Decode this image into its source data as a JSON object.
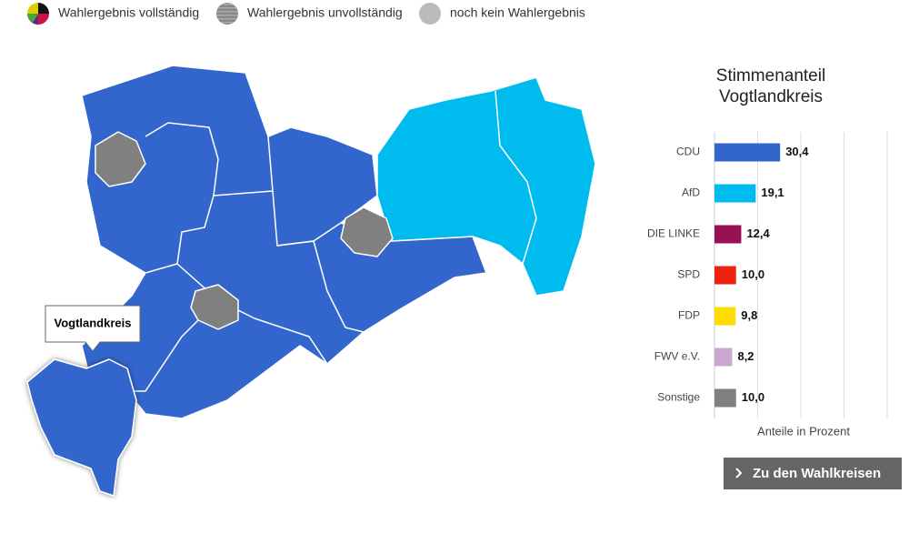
{
  "legend": {
    "items": [
      "Wahlergebnis vollständig",
      "Wahlergebnis unvollständig",
      "noch kein Wahlergebnis"
    ]
  },
  "map": {
    "tooltip": "Vogtlandkreis"
  },
  "chart_data": {
    "type": "bar",
    "orientation": "horizontal",
    "title": [
      "Stimmenanteil",
      "Vogtlandkreis"
    ],
    "x_label": "Anteile in Prozent",
    "categories": [
      "CDU",
      "AfD",
      "DIE LINKE",
      "SPD",
      "FDP",
      "FWV e.V.",
      "Sonstige"
    ],
    "values": [
      30.4,
      19.1,
      12.4,
      10.0,
      9.8,
      8.2,
      10.0
    ],
    "value_labels": [
      "30,4",
      "19,1",
      "12,4",
      "10,0",
      "9,8",
      "8,2",
      "10,0"
    ],
    "colors": [
      "#3366cc",
      "#00bbee",
      "#991155",
      "#ee2211",
      "#ffdd00",
      "#c9a8d0",
      "#808080"
    ],
    "xlim": [
      0,
      80
    ],
    "grid_lines": [
      20,
      40,
      60,
      80
    ]
  },
  "button": {
    "label": "Zu den Wahlkreisen"
  }
}
